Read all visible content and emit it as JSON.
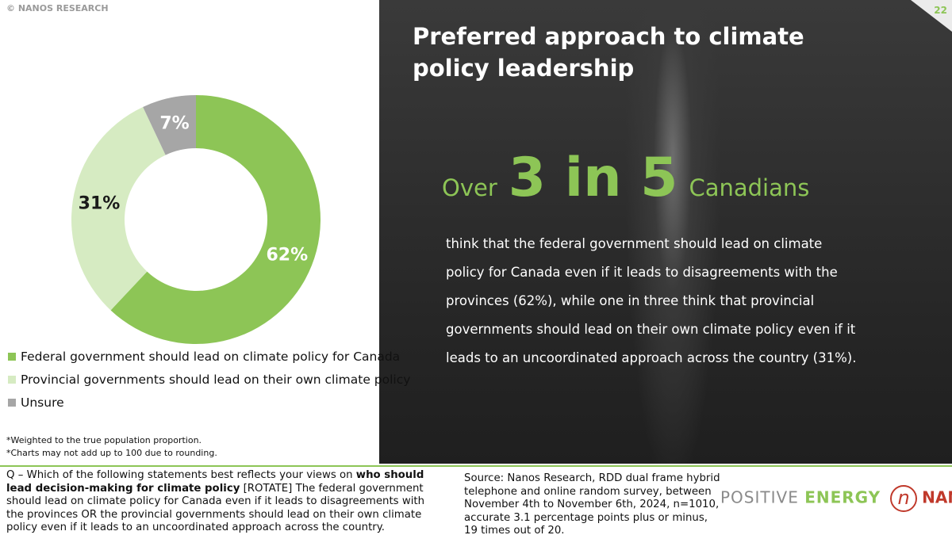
{
  "brand": "© NANOS RESEARCH",
  "page_number": "22",
  "title": "Preferred approach to climate policy leadership",
  "headline": {
    "pre": "Over",
    "big": "3 in 5",
    "post": "Canadians"
  },
  "body_lines": [
    "think that the federal government should lead on climate",
    "policy for Canada even if it leads to disagreements with the",
    "provinces (62%), while one in three think that provincial",
    "governments should lead on their own climate policy even if it",
    "leads to an uncoordinated approach across the country (31%)."
  ],
  "chart_data": {
    "type": "donut",
    "categories": [
      "Federal government should lead on climate policy for Canada",
      "Provincial governments should lead on their own climate policy",
      "Unsure"
    ],
    "values": [
      62,
      31,
      7
    ],
    "value_labels": [
      "62%",
      "31%",
      "7%"
    ],
    "colors": [
      "#8dc556",
      "#d6ebc2",
      "#a6a6a6"
    ],
    "label_colors": [
      "#ffffff",
      "#1a1a1a",
      "#ffffff"
    ]
  },
  "footnotes": [
    "*Weighted to the true population proportion.",
    "*Charts may not add up to 100 due to rounding."
  ],
  "question": {
    "pre": "Q – Which of the following statements best reflects your views on ",
    "bold": "who should lead decision-making for climate policy",
    "post": " [ROTATE] The federal government should lead on climate policy for Canada even if it leads to disagreements with the provinces OR the provincial governments should lead on their own climate policy even if it leads to an uncoordinated approach across the country."
  },
  "source": "Source: Nanos Research, RDD dual frame hybrid telephone and online random survey, between November 4th to November 6th, 2024, n=1010, accurate 3.1 percentage points plus or minus, 19 times out of 20.",
  "logo": {
    "tagline_a": "POSITIVE ",
    "tagline_b": "ENERGY",
    "mark": "n",
    "name": "NANOS"
  }
}
